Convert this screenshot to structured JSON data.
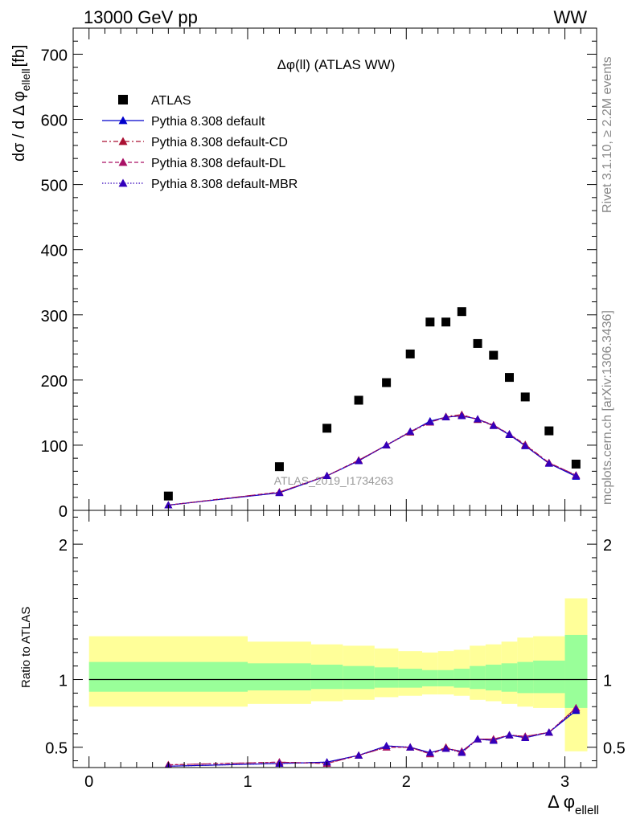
{
  "header": {
    "left": "13000 GeV pp",
    "right": "WW"
  },
  "side_labels": {
    "rivet": "Rivet 3.1.10, ≥ 2.2M events",
    "mcplots": "mcplots.cern.ch [arXiv:1306.3436]"
  },
  "chart_data": {
    "type": "scatter",
    "title": "Δφ(ll) (ATLAS WW)",
    "watermark": "ATLAS_2019_I1734263",
    "xlabel": "Δ φ",
    "xlabel_sub": "ellell",
    "ylabel": "dσ / d Δ φ",
    "ylabel_sub": "ellell",
    "ylabel_unit": "[fb]",
    "ratio_ylabel": "Ratio to ATLAS",
    "xlim": [
      -0.1,
      3.2
    ],
    "ylim": [
      0,
      740
    ],
    "ratio_ylim": [
      0.35,
      2.25
    ],
    "xticks": [
      0,
      1,
      2,
      3
    ],
    "yticks": [
      0,
      100,
      200,
      300,
      400,
      500,
      600,
      700
    ],
    "ratio_yticks": [
      0.5,
      1,
      2
    ],
    "legend_position": "top-left",
    "bins": [
      0,
      1.0,
      1.4,
      1.6,
      1.8,
      1.95,
      2.1,
      2.2,
      2.3,
      2.4,
      2.5,
      2.6,
      2.7,
      2.8,
      3.0,
      3.1416
    ],
    "data": {
      "name": "ATLAS",
      "x": [
        0.5,
        1.2,
        1.5,
        1.7,
        1.875,
        2.025,
        2.15,
        2.25,
        2.35,
        2.45,
        2.55,
        2.65,
        2.75,
        2.9,
        3.07
      ],
      "y": [
        22,
        67,
        126,
        169,
        196,
        240,
        289,
        289,
        305,
        256,
        238,
        204,
        174,
        122,
        71
      ]
    },
    "band_inner": [
      [
        0.91,
        1.13
      ],
      [
        0.92,
        1.12
      ],
      [
        0.93,
        1.11
      ],
      [
        0.93,
        1.1
      ],
      [
        0.94,
        1.09
      ],
      [
        0.94,
        1.08
      ],
      [
        0.95,
        1.07
      ],
      [
        0.95,
        1.07
      ],
      [
        0.94,
        1.08
      ],
      [
        0.93,
        1.1
      ],
      [
        0.92,
        1.11
      ],
      [
        0.91,
        1.12
      ],
      [
        0.9,
        1.13
      ],
      [
        0.9,
        1.14
      ],
      [
        0.79,
        1.33
      ]
    ],
    "band_outer": [
      [
        0.8,
        1.32
      ],
      [
        0.82,
        1.28
      ],
      [
        0.84,
        1.26
      ],
      [
        0.85,
        1.25
      ],
      [
        0.87,
        1.23
      ],
      [
        0.88,
        1.21
      ],
      [
        0.89,
        1.2
      ],
      [
        0.89,
        1.21
      ],
      [
        0.88,
        1.22
      ],
      [
        0.85,
        1.25
      ],
      [
        0.84,
        1.26
      ],
      [
        0.82,
        1.28
      ],
      [
        0.8,
        1.31
      ],
      [
        0.79,
        1.32
      ],
      [
        0.47,
        1.6
      ]
    ],
    "series": [
      {
        "name": "Pythia 8.308 default",
        "color": "#0000cc",
        "dash": "",
        "y": [
          8,
          27,
          53,
          76,
          100,
          120,
          137,
          143,
          145,
          140,
          130,
          116,
          99,
          72,
          52
        ],
        "ratio": [
          0.36,
          0.38,
          0.39,
          0.44,
          0.51,
          0.5,
          0.46,
          0.49,
          0.47,
          0.56,
          0.55,
          0.59,
          0.57,
          0.61,
          0.77
        ]
      },
      {
        "name": "Pythia 8.308 default-CD",
        "color": "#aa1133",
        "dash": "6,3,2,3",
        "y": [
          8,
          28,
          53,
          77,
          100,
          120,
          135,
          144,
          147,
          139,
          130,
          117,
          101,
          73,
          54
        ],
        "ratio": [
          0.37,
          0.39,
          0.38,
          0.44,
          0.5,
          0.5,
          0.45,
          0.5,
          0.46,
          0.56,
          0.56,
          0.59,
          0.58,
          0.61,
          0.79
        ]
      },
      {
        "name": "Pythia 8.308 default-DL",
        "color": "#aa1166",
        "dash": "5,3",
        "y": [
          8,
          28,
          53,
          77,
          100,
          121,
          135,
          143,
          146,
          140,
          131,
          117,
          100,
          73,
          54
        ],
        "ratio": [
          0.37,
          0.39,
          0.38,
          0.44,
          0.5,
          0.5,
          0.45,
          0.49,
          0.47,
          0.56,
          0.56,
          0.59,
          0.58,
          0.61,
          0.79
        ]
      },
      {
        "name": "Pythia 8.308 default-MBR",
        "color": "#3300bb",
        "dash": "1.5,2",
        "y": [
          8,
          27,
          53,
          76,
          100,
          121,
          136,
          143,
          145,
          140,
          130,
          117,
          99,
          72,
          53
        ],
        "ratio": [
          0.36,
          0.38,
          0.39,
          0.44,
          0.51,
          0.5,
          0.46,
          0.49,
          0.46,
          0.56,
          0.55,
          0.59,
          0.57,
          0.61,
          0.78
        ]
      }
    ]
  }
}
